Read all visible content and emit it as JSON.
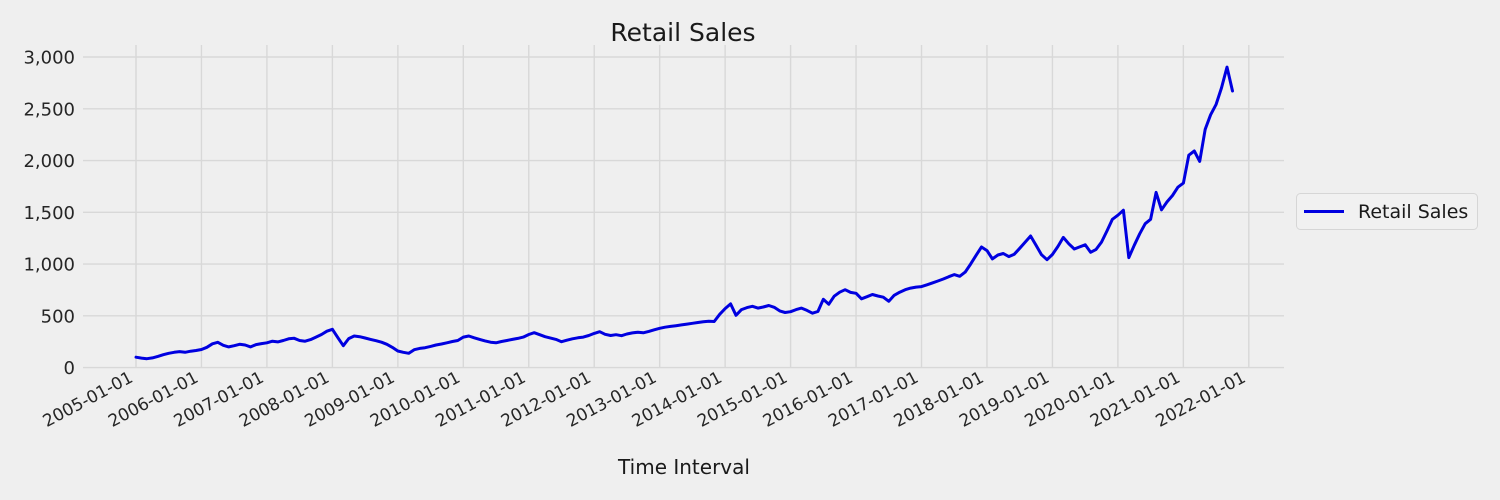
{
  "title": "Retail Sales",
  "x_axis": {
    "label": "Time Interval",
    "tick_labels": [
      "2005-01-01",
      "2006-01-01",
      "2007-01-01",
      "2008-01-01",
      "2009-01-01",
      "2010-01-01",
      "2011-01-01",
      "2012-01-01",
      "2013-01-01",
      "2014-01-01",
      "2015-01-01",
      "2016-01-01",
      "2017-01-01",
      "2018-01-01",
      "2019-01-01",
      "2020-01-01",
      "2021-01-01",
      "2022-01-01"
    ],
    "tick_rotation_deg": -28
  },
  "y_axis": {
    "tick_labels": [
      "0",
      "500",
      "1,000",
      "1,500",
      "2,000",
      "2,500",
      "3,000"
    ],
    "tick_values": [
      0,
      500,
      1000,
      1500,
      2000,
      2500,
      3000
    ]
  },
  "legend": {
    "items": [
      {
        "label": "Retail Sales",
        "color": "#0000e0"
      }
    ],
    "position": "right-outside"
  },
  "colors": {
    "background": "#efefef",
    "gridline": "#d8d8d8",
    "line": "#0000e0",
    "text": "#262626"
  },
  "chart_data": {
    "type": "line",
    "title": "Retail Sales",
    "xlabel": "Time Interval",
    "ylabel": "",
    "grid": true,
    "legend_position": "right",
    "ylim": [
      0,
      3115
    ],
    "x_range": [
      "2004-03-01",
      "2022-07-01"
    ],
    "series": [
      {
        "name": "Retail Sales",
        "color": "#0000e0",
        "start_month": "2005-01",
        "frequency": "monthly",
        "end_month": "2021-10",
        "values": [
          100,
          92,
          86,
          94,
          108,
          125,
          138,
          148,
          155,
          148,
          158,
          165,
          175,
          196,
          230,
          244,
          215,
          200,
          212,
          225,
          218,
          200,
          222,
          232,
          240,
          255,
          248,
          262,
          278,
          283,
          262,
          255,
          270,
          295,
          320,
          352,
          370,
          290,
          212,
          280,
          305,
          298,
          286,
          272,
          260,
          245,
          225,
          195,
          160,
          148,
          138,
          173,
          185,
          192,
          205,
          218,
          228,
          240,
          252,
          262,
          295,
          305,
          288,
          272,
          258,
          245,
          240,
          252,
          262,
          272,
          282,
          295,
          320,
          337,
          318,
          298,
          285,
          272,
          250,
          265,
          278,
          288,
          295,
          310,
          330,
          347,
          322,
          310,
          318,
          308,
          325,
          335,
          342,
          336,
          350,
          365,
          380,
          390,
          398,
          405,
          412,
          420,
          428,
          436,
          442,
          448,
          445,
          515,
          570,
          615,
          505,
          560,
          580,
          592,
          575,
          585,
          600,
          582,
          548,
          532,
          540,
          560,
          575,
          552,
          525,
          542,
          660,
          612,
          690,
          728,
          752,
          726,
          718,
          665,
          685,
          706,
          692,
          680,
          640,
          698,
          728,
          752,
          768,
          778,
          782,
          800,
          818,
          836,
          856,
          878,
          898,
          882,
          922,
          1000,
          1085,
          1165,
          1130,
          1050,
          1088,
          1102,
          1072,
          1095,
          1152,
          1212,
          1271,
          1180,
          1090,
          1042,
          1092,
          1170,
          1258,
          1196,
          1146,
          1166,
          1186,
          1114,
          1142,
          1212,
          1320,
          1432,
          1472,
          1520,
          1062,
          1182,
          1292,
          1390,
          1432,
          1692,
          1524,
          1600,
          1662,
          1742,
          1782,
          2052,
          2092,
          1992,
          2302,
          2442,
          2542,
          2702,
          2902,
          2672
        ]
      }
    ]
  }
}
